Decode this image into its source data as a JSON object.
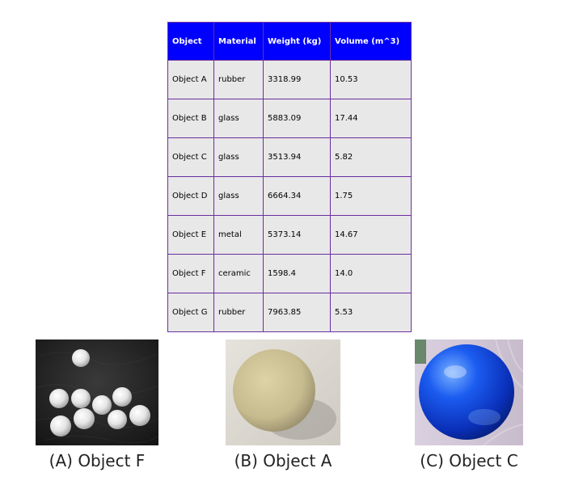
{
  "table": {
    "headers": [
      "Object",
      "Material",
      "Weight (kg)",
      "Volume (m^3)"
    ],
    "rows": [
      [
        "Object A",
        "rubber",
        "3318.99",
        "10.53"
      ],
      [
        "Object B",
        "glass",
        "5883.09",
        "17.44"
      ],
      [
        "Object C",
        "glass",
        "3513.94",
        "5.82"
      ],
      [
        "Object D",
        "glass",
        "6664.34",
        "1.75"
      ],
      [
        "Object E",
        "metal",
        "5373.14",
        "14.67"
      ],
      [
        "Object F",
        "ceramic",
        "1598.4",
        "14.0"
      ],
      [
        "Object G",
        "rubber",
        "7963.85",
        "5.53"
      ]
    ],
    "header_bg": "#0000ff",
    "cell_bg": "#e8e8e8",
    "border_color": "#6a2fa0"
  },
  "photos": [
    {
      "caption": "(A) Object F",
      "depicts": "white-ceramic-balls"
    },
    {
      "caption": "(B) Object A",
      "depicts": "beige-rubber-ball"
    },
    {
      "caption": "(C) Object C",
      "depicts": "blue-glass-sphere"
    }
  ]
}
